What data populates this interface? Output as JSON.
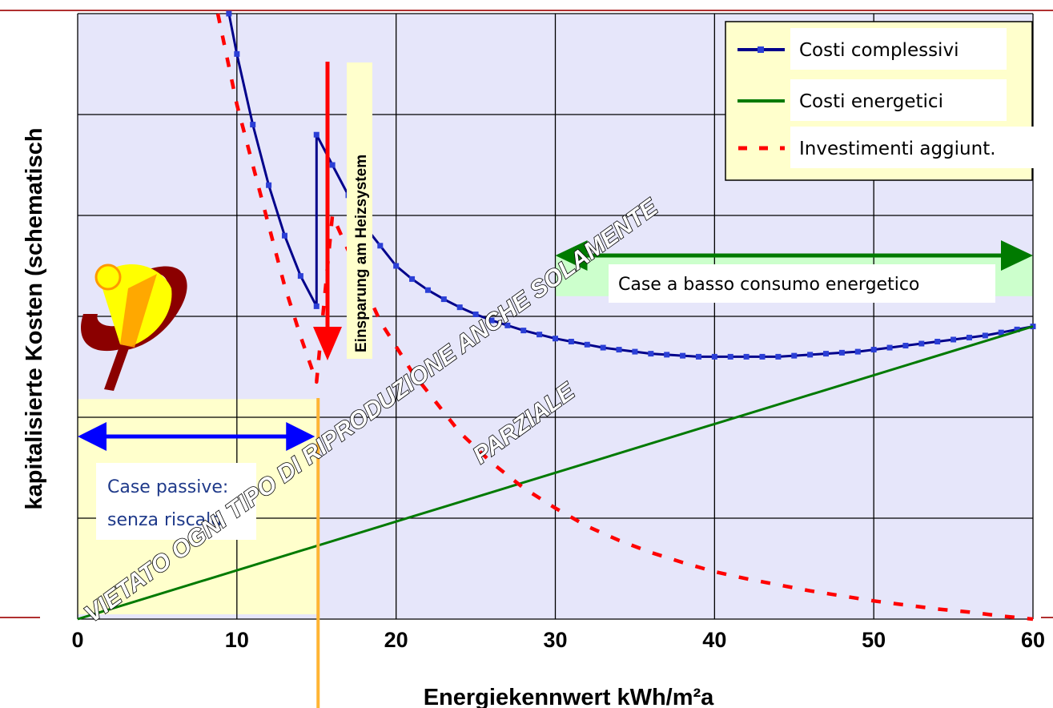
{
  "chart_data": {
    "type": "line",
    "xlabel": "Energiekennwert kWh/m²a",
    "ylabel": "kapitalisierte Kosten (schematisch",
    "xlim": [
      0,
      60
    ],
    "ylim": [
      0,
      6
    ],
    "x_ticks": [
      "0",
      "10",
      "20",
      "30",
      "40",
      "50",
      "60"
    ],
    "grid": true,
    "legend_position": "top-right",
    "series": [
      {
        "name": "Costi complessivi",
        "style": "solid-with-square-markers",
        "color": "#00008b",
        "x": [
          9.5,
          10,
          11,
          12,
          13,
          14,
          15,
          15,
          16,
          17,
          18,
          19,
          20,
          21,
          22,
          23,
          24,
          25,
          26,
          27,
          28,
          29,
          30,
          31,
          32,
          33,
          34,
          35,
          36,
          37,
          38,
          39,
          40,
          41,
          42,
          43,
          44,
          45,
          46,
          47,
          48,
          49,
          50,
          51,
          52,
          53,
          54,
          55,
          56,
          57,
          58,
          59,
          60
        ],
        "y": [
          6.0,
          5.6,
          4.9,
          4.3,
          3.8,
          3.4,
          3.1,
          4.8,
          4.5,
          4.2,
          3.9,
          3.7,
          3.5,
          3.37,
          3.26,
          3.17,
          3.09,
          3.02,
          2.96,
          2.91,
          2.86,
          2.82,
          2.78,
          2.75,
          2.72,
          2.69,
          2.67,
          2.65,
          2.63,
          2.62,
          2.61,
          2.6,
          2.6,
          2.6,
          2.6,
          2.6,
          2.6,
          2.61,
          2.62,
          2.63,
          2.64,
          2.65,
          2.67,
          2.69,
          2.71,
          2.73,
          2.75,
          2.77,
          2.79,
          2.81,
          2.84,
          2.87,
          2.9
        ]
      },
      {
        "name": "Costi energetici",
        "style": "solid",
        "color": "#007a00",
        "x": [
          0,
          60
        ],
        "y": [
          0,
          2.9
        ]
      },
      {
        "name": "Investimenti aggiunt.",
        "style": "dashed",
        "color": "#ff0000",
        "x": [
          8.8,
          10,
          11,
          12,
          13,
          14,
          15,
          16,
          17,
          18,
          19,
          20,
          21,
          22,
          24,
          26,
          28,
          30,
          32,
          34,
          36,
          38,
          40,
          42,
          44,
          46,
          48,
          50,
          52,
          54,
          56,
          58,
          60
        ],
        "y": [
          6.0,
          5.1,
          4.5,
          3.9,
          3.3,
          2.8,
          2.35,
          4.0,
          3.65,
          3.3,
          2.95,
          2.7,
          2.45,
          2.25,
          1.85,
          1.55,
          1.3,
          1.1,
          0.92,
          0.78,
          0.66,
          0.56,
          0.47,
          0.4,
          0.34,
          0.28,
          0.23,
          0.18,
          0.14,
          0.1,
          0.07,
          0.03,
          0.0
        ]
      }
    ],
    "annotations": {
      "heating_savings_arrow": "Einsparung am Heizsystem",
      "passive_houses": [
        "Case passive:",
        "senza riscald."
      ],
      "low_energy_houses": "Case a basso consumo energetico"
    }
  },
  "watermark": {
    "line1": "VIETATO OGNI TIPO DI RIPRODUZIONE ANCHE SOLAMENTE",
    "line2": "PARZIALE"
  },
  "colors": {
    "plot_background": "#e6e6fa",
    "legend_background": "#ffffcc",
    "passive_zone": "#ffffcc",
    "low_energy_zone": "#ccffcc",
    "separator": "#ffb433",
    "passive_arrow": "#0000ff",
    "low_energy_arrow": "#007a00",
    "savings_arrow": "#ff0000"
  },
  "logo": "passivhaus-logo-icon"
}
